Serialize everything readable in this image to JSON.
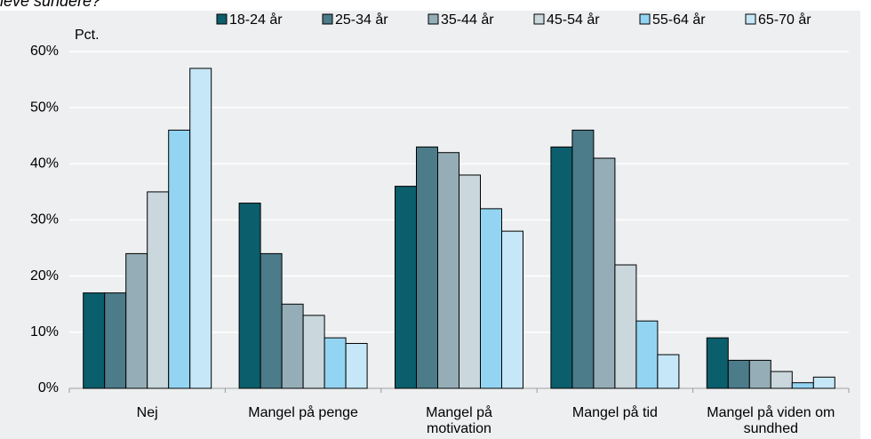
{
  "chart_data": {
    "type": "bar",
    "title": "leve sundere?",
    "ylabel": "Pct.",
    "categories": [
      "Nej",
      "Mangel på penge",
      "Mangel på motivation",
      "Mangel på tid",
      "Mangel på viden om sundhed"
    ],
    "series": [
      {
        "name": "18-24 år",
        "color": "#0b5e6b",
        "values": [
          17,
          33,
          36,
          43,
          9
        ]
      },
      {
        "name": "25-34 år",
        "color": "#4c7b8a",
        "values": [
          17,
          24,
          43,
          46,
          5
        ]
      },
      {
        "name": "35-44 år",
        "color": "#95adb7",
        "values": [
          24,
          15,
          42,
          41,
          5
        ]
      },
      {
        "name": "45-54 år",
        "color": "#cad7dd",
        "values": [
          35,
          13,
          38,
          22,
          3
        ]
      },
      {
        "name": "55-64 år",
        "color": "#93d4f2",
        "values": [
          46,
          9,
          32,
          12,
          1
        ]
      },
      {
        "name": "65-70 år",
        "color": "#c6e7f7",
        "values": [
          57,
          8,
          28,
          6,
          2
        ]
      }
    ],
    "ylim": [
      0,
      60
    ],
    "yticks": [
      {
        "value": 0,
        "label": "0%"
      },
      {
        "value": 10,
        "label": "10%"
      },
      {
        "value": 20,
        "label": "20%"
      },
      {
        "value": 30,
        "label": "30%"
      },
      {
        "value": 40,
        "label": "40%"
      },
      {
        "value": 50,
        "label": "50%"
      },
      {
        "value": 60,
        "label": "60%"
      }
    ],
    "grid": true
  }
}
